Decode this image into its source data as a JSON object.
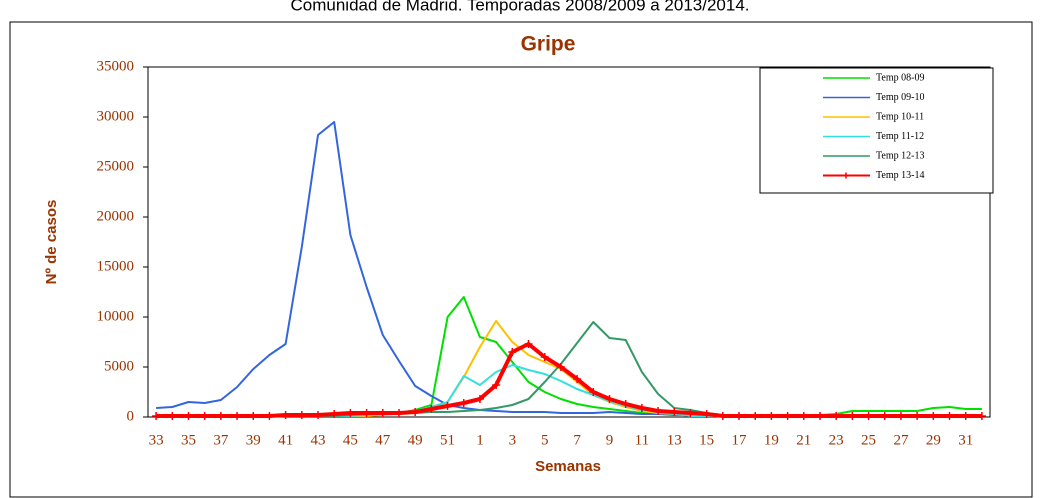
{
  "chart_data": {
    "type": "line",
    "subtitle": "Comunidad de Madrid. Temporadas 2008/2009 a 2013/2014.",
    "title": "Gripe",
    "x_label": "Semanas",
    "y_label": "Nº de casos",
    "categories": [
      33,
      null,
      35,
      null,
      37,
      null,
      39,
      null,
      41,
      null,
      43,
      null,
      45,
      null,
      47,
      null,
      49,
      null,
      51,
      null,
      1,
      null,
      3,
      null,
      5,
      null,
      7,
      null,
      9,
      null,
      11,
      null,
      13,
      null,
      15,
      null,
      17,
      null,
      19,
      null,
      21,
      null,
      23,
      null,
      25,
      null,
      27,
      null,
      29,
      null,
      31,
      null
    ],
    "ylim": [
      0,
      35000
    ],
    "yticks": [
      0,
      5000,
      10000,
      15000,
      20000,
      25000,
      30000,
      35000
    ],
    "legend": "upper right",
    "series": [
      {
        "name": "Temp 08-09",
        "color": "#00e000",
        "values": [
          100,
          100,
          100,
          100,
          100,
          100,
          100,
          100,
          150,
          200,
          200,
          300,
          300,
          300,
          300,
          400,
          700,
          1200,
          10000,
          12000,
          8000,
          7500,
          5500,
          3500,
          2500,
          1800,
          1300,
          1000,
          800,
          600,
          400,
          300,
          300,
          200,
          200,
          200,
          200,
          200,
          200,
          200,
          200,
          200,
          300,
          600,
          600,
          600,
          600,
          600,
          900,
          1000,
          800,
          800
        ]
      },
      {
        "name": "Temp 09-10",
        "color": "#3366dd",
        "values": [
          900,
          1000,
          1500,
          1400,
          1700,
          3000,
          4800,
          6200,
          7300,
          17000,
          28200,
          29500,
          18200,
          13000,
          8200,
          5600,
          3100,
          2100,
          1200,
          900,
          700,
          600,
          500,
          500,
          500,
          400,
          400,
          400,
          500,
          400,
          300,
          300,
          200,
          200,
          200,
          150,
          100,
          100,
          100,
          100,
          100,
          100,
          100,
          100,
          100,
          100,
          100,
          100,
          100,
          100,
          100,
          100
        ]
      },
      {
        "name": "Temp 10-11",
        "color": "#ffc000",
        "values": [
          100,
          100,
          100,
          100,
          100,
          100,
          100,
          100,
          100,
          100,
          100,
          100,
          100,
          100,
          200,
          300,
          400,
          600,
          1500,
          4000,
          7000,
          9600,
          7500,
          6200,
          5500,
          4800,
          3500,
          2200,
          1500,
          1000,
          600,
          400,
          300,
          200,
          100,
          100,
          100,
          100,
          100,
          100,
          100,
          100,
          100,
          100,
          100,
          100,
          100,
          100,
          100,
          100,
          100,
          100
        ]
      },
      {
        "name": "Temp 11-12",
        "color": "#33e0e0",
        "values": [
          100,
          100,
          100,
          100,
          100,
          100,
          100,
          100,
          100,
          100,
          100,
          100,
          100,
          200,
          300,
          400,
          600,
          1000,
          1500,
          4100,
          3200,
          4500,
          5200,
          4700,
          4300,
          3600,
          2800,
          2200,
          1600,
          1100,
          700,
          500,
          300,
          100,
          100,
          100,
          100,
          100,
          100,
          100,
          100,
          100,
          100,
          100,
          100,
          100,
          100,
          100,
          100,
          100,
          100,
          100
        ]
      },
      {
        "name": "Temp 12-13",
        "color": "#339966",
        "values": [
          100,
          100,
          100,
          100,
          100,
          100,
          100,
          100,
          100,
          100,
          100,
          100,
          200,
          300,
          300,
          400,
          400,
          500,
          500,
          600,
          700,
          900,
          1200,
          1800,
          3500,
          5300,
          7400,
          9500,
          7900,
          7700,
          4500,
          2300,
          900,
          700,
          400,
          200,
          100,
          100,
          100,
          100,
          100,
          100,
          100,
          100,
          100,
          100,
          100,
          100,
          100,
          100,
          100,
          100
        ]
      },
      {
        "name": "Temp 13-14",
        "color": "#ff0000",
        "marker": "+",
        "values": [
          100,
          100,
          100,
          100,
          100,
          100,
          100,
          100,
          200,
          200,
          200,
          300,
          400,
          400,
          400,
          400,
          500,
          800,
          1100,
          1400,
          1800,
          3200,
          6500,
          7300,
          6000,
          5000,
          3800,
          2500,
          1800,
          1300,
          900,
          600,
          500,
          400,
          300,
          100,
          100,
          100,
          100,
          100,
          100,
          100,
          100,
          100,
          100,
          100,
          100,
          100,
          100,
          100,
          100,
          100
        ]
      }
    ]
  }
}
